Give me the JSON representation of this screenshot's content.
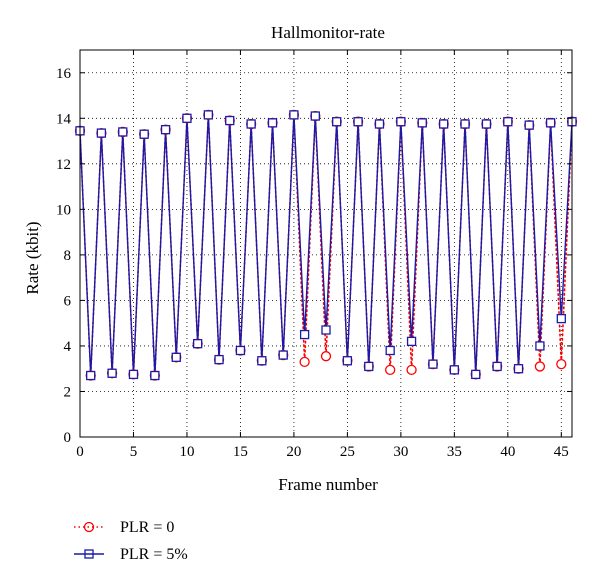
{
  "chart_data": {
    "type": "line",
    "title": "Hallmonitor-rate",
    "xlabel": "Frame number",
    "ylabel": "Rate (kbit)",
    "xlim": [
      0,
      46
    ],
    "ylim": [
      0,
      17
    ],
    "xticks": [
      0,
      5,
      10,
      15,
      20,
      25,
      30,
      35,
      40,
      45
    ],
    "yticks": [
      0,
      2,
      4,
      6,
      8,
      10,
      12,
      14,
      16
    ],
    "grid": true,
    "legend_position": "bottom-left, below plot",
    "series": [
      {
        "name": "PLR = 0",
        "color": "#ff0000",
        "line_style": "dotted",
        "marker": "circle",
        "x": [
          0,
          1,
          2,
          3,
          4,
          5,
          6,
          7,
          8,
          9,
          10,
          11,
          12,
          13,
          14,
          15,
          16,
          17,
          18,
          19,
          20,
          21,
          22,
          23,
          24,
          25,
          26,
          27,
          28,
          29,
          30,
          31,
          32,
          33,
          34,
          35,
          36,
          37,
          38,
          39,
          40,
          41,
          42,
          43,
          44,
          45,
          46
        ],
        "y": [
          13.45,
          2.7,
          13.35,
          2.8,
          13.4,
          2.75,
          13.3,
          2.7,
          13.5,
          3.5,
          14.0,
          4.1,
          14.15,
          3.4,
          13.9,
          3.8,
          13.75,
          3.35,
          13.8,
          3.6,
          14.15,
          3.3,
          14.1,
          3.55,
          13.85,
          3.35,
          13.85,
          3.1,
          13.75,
          2.95,
          13.85,
          2.95,
          13.8,
          3.2,
          13.75,
          2.95,
          13.75,
          2.75,
          13.75,
          3.1,
          13.85,
          3.0,
          13.7,
          3.1,
          13.8,
          3.2,
          13.85
        ]
      },
      {
        "name": "PLR = 5%",
        "color": "#1a1aa8",
        "line_style": "solid",
        "marker": "square",
        "x": [
          0,
          1,
          2,
          3,
          4,
          5,
          6,
          7,
          8,
          9,
          10,
          11,
          12,
          13,
          14,
          15,
          16,
          17,
          18,
          19,
          20,
          21,
          22,
          23,
          24,
          25,
          26,
          27,
          28,
          29,
          30,
          31,
          32,
          33,
          34,
          35,
          36,
          37,
          38,
          39,
          40,
          41,
          42,
          43,
          44,
          45,
          46
        ],
        "y": [
          13.45,
          2.7,
          13.35,
          2.8,
          13.4,
          2.75,
          13.3,
          2.7,
          13.5,
          3.5,
          14.0,
          4.1,
          14.15,
          3.4,
          13.9,
          3.8,
          13.75,
          3.35,
          13.8,
          3.6,
          14.15,
          4.5,
          14.1,
          4.7,
          13.85,
          3.35,
          13.85,
          3.1,
          13.75,
          3.8,
          13.85,
          4.2,
          13.8,
          3.2,
          13.75,
          2.95,
          13.75,
          2.75,
          13.75,
          3.1,
          13.85,
          3.0,
          13.7,
          4.0,
          13.8,
          5.2,
          13.85
        ]
      }
    ]
  }
}
